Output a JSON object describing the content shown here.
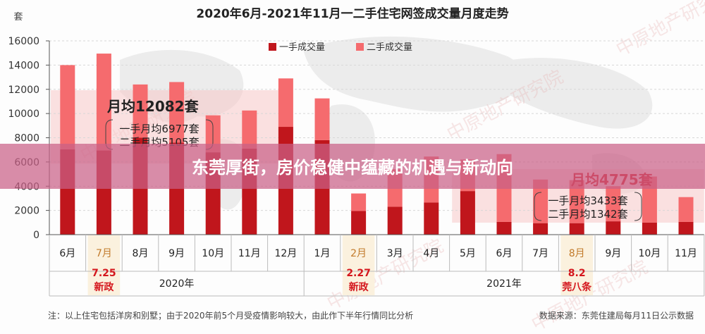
{
  "banner": {
    "text": "东莞厚街，房价稳健中蕴藏的机遇与新动向"
  },
  "watermarks": [
    "中原地产研究院",
    "中原地产研究院",
    "中原地产研究院",
    "中原地产研究院",
    "中原地产研究院"
  ],
  "chart_data": {
    "type": "bar",
    "title": "2020年6月-2021年11月一二手住宅网签成交量月度走势",
    "ylabel": "套",
    "ylim": [
      0,
      16000
    ],
    "yticks": [
      0,
      2000,
      4000,
      6000,
      8000,
      10000,
      12000,
      14000,
      16000
    ],
    "grid": true,
    "legend_position": "top-center",
    "categories": [
      "6月",
      "7月",
      "8月",
      "9月",
      "10月",
      "11月",
      "12月",
      "1月",
      "2月",
      "3月",
      "4月",
      "5月",
      "6月",
      "7月",
      "8月",
      "9月",
      "10月",
      "11月"
    ],
    "highlight_indices": [
      1,
      8,
      14
    ],
    "series": [
      {
        "name": "一手成交量",
        "color": "#c0161c",
        "values": [
          7050,
          6950,
          8000,
          7600,
          6800,
          7100,
          8900,
          7800,
          1950,
          2300,
          2650,
          3600,
          1050,
          950,
          950,
          1100,
          1000,
          1050
        ]
      },
      {
        "name": "二手成交量",
        "color": "#f56b6e",
        "values": [
          6950,
          8000,
          4400,
          5000,
          3050,
          3150,
          4000,
          3450,
          1450,
          3100,
          3800,
          2600,
          5600,
          3600,
          3550,
          2900,
          3800,
          2050
        ]
      }
    ],
    "years": [
      "2020年",
      "2021年"
    ],
    "policies": [
      {
        "date": "7.25",
        "name": "新政"
      },
      {
        "date": "2.27",
        "name": "新政"
      },
      {
        "date": "8.2",
        "name": "莞八条"
      }
    ],
    "annotations": [
      {
        "headline": "月均12082套",
        "lines": [
          "一手月均6977套",
          "二手月均5105套"
        ]
      },
      {
        "headline": "月均4775套",
        "lines": [
          "一手月均3433套",
          "二手月均1342套"
        ]
      }
    ],
    "note": "注：以上住宅包括洋房和别墅；由于2020年前5个月受疫情影响较大，由此作下半年行情同比分析",
    "source": "数据来源：东莞住建局每月11日公示数据"
  }
}
